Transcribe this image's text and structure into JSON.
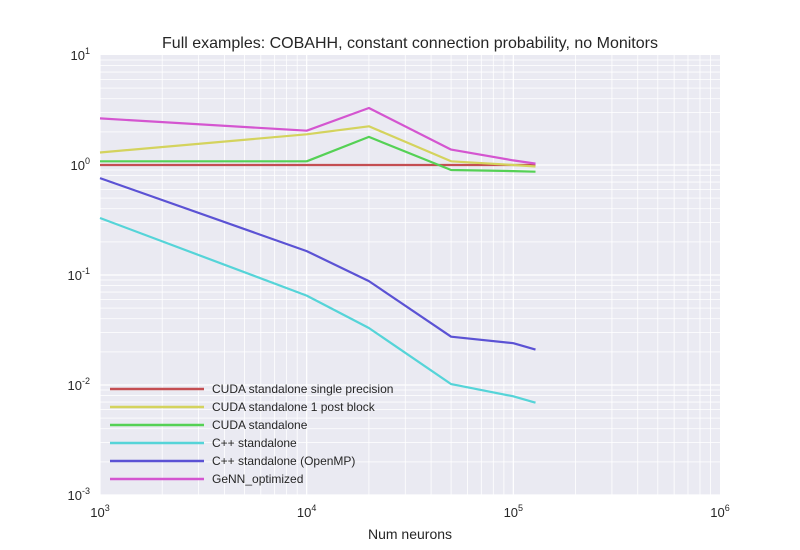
{
  "chart_data": {
    "type": "line",
    "title": "Full examples: COBAHH, constant connection probability, no Monitors",
    "xlabel": "Num neurons",
    "ylabel": "",
    "xscale": "log",
    "yscale": "log",
    "xlim": [
      1000,
      1000000
    ],
    "ylim": [
      0.001,
      10
    ],
    "x_ticks": [
      {
        "value": 1000,
        "base": "10",
        "exp": "3"
      },
      {
        "value": 10000,
        "base": "10",
        "exp": "4"
      },
      {
        "value": 100000,
        "base": "10",
        "exp": "5"
      },
      {
        "value": 1000000,
        "base": "10",
        "exp": "6"
      }
    ],
    "y_ticks": [
      {
        "value": 10,
        "base": "10",
        "exp": "1"
      },
      {
        "value": 1,
        "base": "10",
        "exp": "0"
      },
      {
        "value": 0.1,
        "base": "10",
        "exp": "-1"
      },
      {
        "value": 0.01,
        "base": "10",
        "exp": "-2"
      },
      {
        "value": 0.001,
        "base": "10",
        "exp": "-3"
      }
    ],
    "grid": true,
    "legend_position": "bottom-left",
    "x": [
      1000,
      10000,
      20000,
      50000,
      100000,
      128000
    ],
    "series": [
      {
        "name": "CUDA standalone single precision",
        "color": "#c44e52",
        "values": [
          1.0,
          1.0,
          1.0,
          1.0,
          1.0,
          1.0
        ]
      },
      {
        "name": "CUDA standalone 1 post block",
        "color": "#d4d35d",
        "values": [
          1.3,
          1.9,
          2.25,
          1.08,
          1.0,
          0.97
        ]
      },
      {
        "name": "CUDA standalone",
        "color": "#55d155",
        "values": [
          1.08,
          1.08,
          1.8,
          0.9,
          0.88,
          0.87
        ]
      },
      {
        "name": "C++ standalone",
        "color": "#55d4d8",
        "values": [
          0.33,
          0.065,
          0.033,
          0.0102,
          0.0079,
          0.0069
        ]
      },
      {
        "name": "C++ standalone (OpenMP)",
        "color": "#5b52d4",
        "values": [
          0.76,
          0.165,
          0.088,
          0.0275,
          0.024,
          0.021
        ]
      },
      {
        "name": "GeNN_optimized",
        "color": "#d455d0",
        "values": [
          2.65,
          2.05,
          3.3,
          1.38,
          1.1,
          1.03
        ]
      }
    ]
  }
}
